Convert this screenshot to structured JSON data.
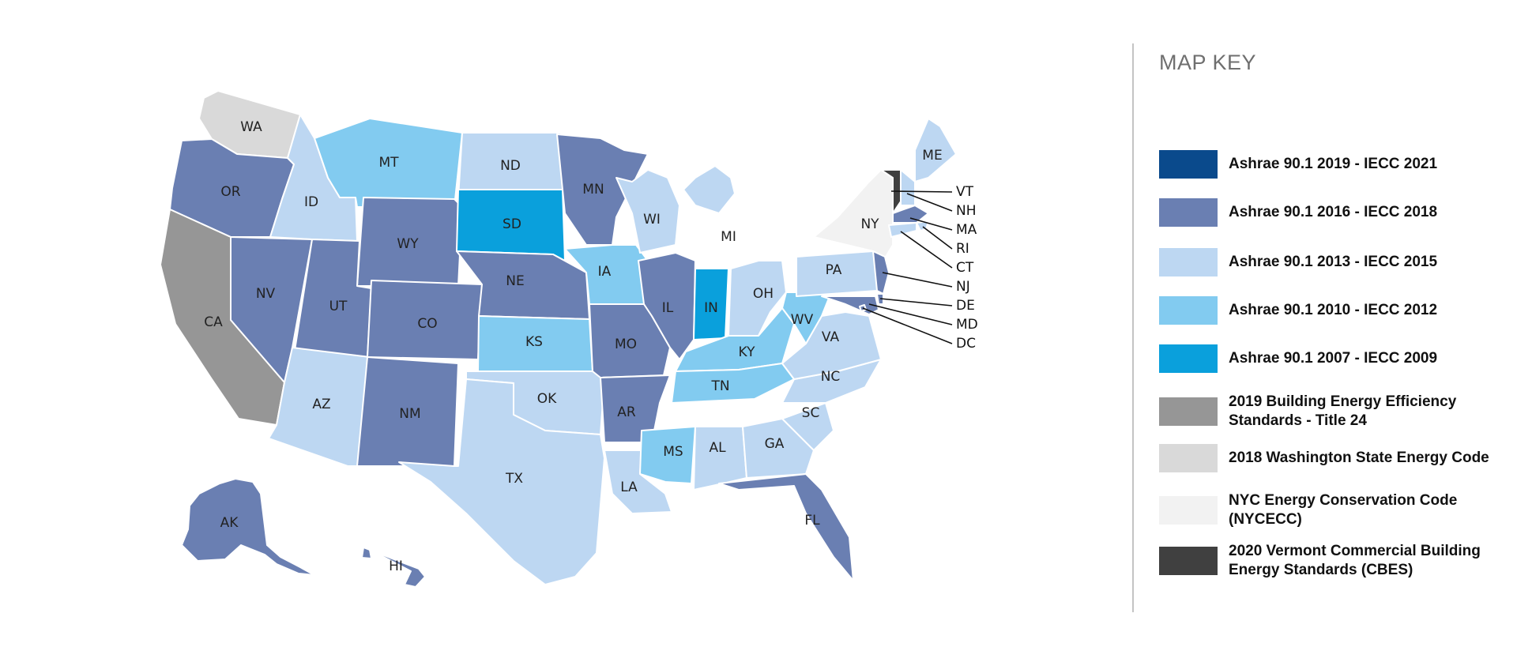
{
  "key": {
    "title": "MAP KEY",
    "items": [
      {
        "id": "c2019",
        "label": "Ashrae 90.1 2019 - IECC 2021",
        "color": "#0a4a8c"
      },
      {
        "id": "c2016",
        "label": "Ashrae 90.1 2016 - IECC 2018",
        "color": "#6a7fb2"
      },
      {
        "id": "c2013",
        "label": "Ashrae 90.1 2013 - IECC 2015",
        "color": "#bdd7f2"
      },
      {
        "id": "c2010",
        "label": "Ashrae 90.1 2010 - IECC 2012",
        "color": "#82cbf0"
      },
      {
        "id": "c2007",
        "label": "Ashrae 90.1 2007 - IECC 2009",
        "color": "#0aa0dc"
      },
      {
        "id": "ca",
        "label": "2019 Building Energy Efficiency Standards - Title 24",
        "color": "#969696"
      },
      {
        "id": "wa",
        "label": "2018 Washington State Energy Code",
        "color": "#d9d9d9"
      },
      {
        "id": "ny",
        "label": "NYC Energy Conservation Code (NYCECC)",
        "color": "#f2f2f2"
      },
      {
        "id": "vt",
        "label": "2020 Vermont Commercial Building Energy Standards (CBES)",
        "color": "#404040"
      }
    ]
  },
  "states": [
    {
      "abbr": "WA",
      "code": "wa"
    },
    {
      "abbr": "OR",
      "code": "c2016"
    },
    {
      "abbr": "CA",
      "code": "ca"
    },
    {
      "abbr": "ID",
      "code": "c2013"
    },
    {
      "abbr": "NV",
      "code": "c2016"
    },
    {
      "abbr": "MT",
      "code": "c2010"
    },
    {
      "abbr": "WY",
      "code": "c2016"
    },
    {
      "abbr": "UT",
      "code": "c2016"
    },
    {
      "abbr": "AZ",
      "code": "c2013"
    },
    {
      "abbr": "CO",
      "code": "c2016"
    },
    {
      "abbr": "NM",
      "code": "c2016"
    },
    {
      "abbr": "ND",
      "code": "c2013"
    },
    {
      "abbr": "SD",
      "code": "c2007"
    },
    {
      "abbr": "NE",
      "code": "c2016"
    },
    {
      "abbr": "KS",
      "code": "c2010"
    },
    {
      "abbr": "OK",
      "code": "c2013"
    },
    {
      "abbr": "TX",
      "code": "c2013"
    },
    {
      "abbr": "MN",
      "code": "c2016"
    },
    {
      "abbr": "IA",
      "code": "c2010"
    },
    {
      "abbr": "MO",
      "code": "c2016"
    },
    {
      "abbr": "AR",
      "code": "c2016"
    },
    {
      "abbr": "LA",
      "code": "c2013"
    },
    {
      "abbr": "WI",
      "code": "c2013"
    },
    {
      "abbr": "IL",
      "code": "c2016"
    },
    {
      "abbr": "MI",
      "code": "c2013"
    },
    {
      "abbr": "IN",
      "code": "c2007"
    },
    {
      "abbr": "OH",
      "code": "c2013"
    },
    {
      "abbr": "KY",
      "code": "c2010"
    },
    {
      "abbr": "TN",
      "code": "c2010"
    },
    {
      "abbr": "MS",
      "code": "c2010"
    },
    {
      "abbr": "AL",
      "code": "c2013"
    },
    {
      "abbr": "GA",
      "code": "c2013"
    },
    {
      "abbr": "FL",
      "code": "c2016"
    },
    {
      "abbr": "SC",
      "code": "c2013"
    },
    {
      "abbr": "NC",
      "code": "c2013"
    },
    {
      "abbr": "VA",
      "code": "c2013"
    },
    {
      "abbr": "WV",
      "code": "c2010"
    },
    {
      "abbr": "PA",
      "code": "c2013"
    },
    {
      "abbr": "NY",
      "code": "ny"
    },
    {
      "abbr": "VT",
      "code": "vt"
    },
    {
      "abbr": "NH",
      "code": "c2013"
    },
    {
      "abbr": "ME",
      "code": "c2013"
    },
    {
      "abbr": "MA",
      "code": "c2016"
    },
    {
      "abbr": "RI",
      "code": "c2013"
    },
    {
      "abbr": "CT",
      "code": "c2013"
    },
    {
      "abbr": "NJ",
      "code": "c2016"
    },
    {
      "abbr": "DE",
      "code": "c2016"
    },
    {
      "abbr": "MD",
      "code": "c2016"
    },
    {
      "abbr": "DC",
      "code": "c2016"
    },
    {
      "abbr": "AK",
      "code": "c2016"
    },
    {
      "abbr": "HI",
      "code": "c2016"
    }
  ]
}
